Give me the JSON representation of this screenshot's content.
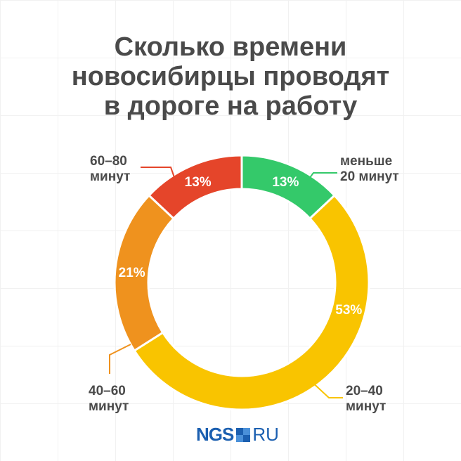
{
  "title": [
    "Сколько времени",
    "новосибирцы проводят",
    "в дороге на работу"
  ],
  "chart_data": {
    "type": "pie",
    "donut": true,
    "title": "Сколько времени новосибирцы проводят в дороге на работу",
    "slices": [
      {
        "label": [
          "меньше",
          "20 минут"
        ],
        "value": 13,
        "display": "13%",
        "color": "#34c96a"
      },
      {
        "label": [
          "20–40",
          "минут"
        ],
        "value": 53,
        "display": "53%",
        "color": "#f9c400"
      },
      {
        "label": [
          "40–60",
          "минут"
        ],
        "value": 21,
        "display": "21%",
        "color": "#ef921e"
      },
      {
        "label": [
          "60–80",
          "минут"
        ],
        "value": 13,
        "display": "13%",
        "color": "#e5452a"
      }
    ]
  },
  "logo": {
    "brand": "NGS",
    "suffix": "RU",
    "color": "#1b5fb0"
  }
}
